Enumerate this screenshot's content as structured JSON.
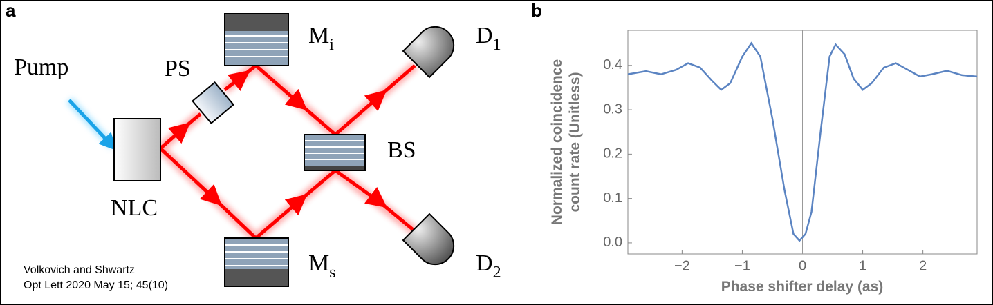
{
  "panel_labels": [
    "a",
    "b"
  ],
  "diagram": {
    "pump": "Pump",
    "ps": "PS",
    "nlc": "NLC",
    "mi": {
      "main": "M",
      "sub": "i"
    },
    "ms": {
      "main": "M",
      "sub": "s"
    },
    "bs": "BS",
    "d1": {
      "main": "D",
      "sub": "1"
    },
    "d2": {
      "main": "D",
      "sub": "2"
    },
    "citation": [
      "Volkovich and Shwartz",
      "Opt Lett 2020 May 15; 45(10)"
    ]
  },
  "chart_data": {
    "type": "line",
    "x_label": "Phase shifter delay (as)",
    "y_label": [
      "Normalized coincidence",
      "count rate (Unitless)"
    ],
    "xlim": [
      -2.9,
      2.9
    ],
    "ylim": [
      -0.025,
      0.479
    ],
    "xticks": [
      {
        "value": -2,
        "label": "−2"
      },
      {
        "value": -1,
        "label": "−1"
      },
      0,
      1,
      2
    ],
    "yticks": [
      {
        "value": 0,
        "label": "0.0"
      },
      0.1,
      0.2,
      0.3,
      0.4
    ],
    "x": [
      -2.9,
      -2.6,
      -2.35,
      -2.1,
      -1.9,
      -1.7,
      -1.5,
      -1.35,
      -1.2,
      -1.0,
      -0.85,
      -0.7,
      -0.5,
      -0.3,
      -0.15,
      -0.05,
      0.05,
      0.15,
      0.3,
      0.45,
      0.55,
      0.7,
      0.85,
      1.0,
      1.15,
      1.35,
      1.55,
      1.75,
      1.95,
      2.15,
      2.4,
      2.65,
      2.9
    ],
    "series": [
      {
        "color": "#5b84c2",
        "values": [
          0.38,
          0.387,
          0.38,
          0.39,
          0.405,
          0.395,
          0.365,
          0.345,
          0.36,
          0.42,
          0.45,
          0.42,
          0.28,
          0.12,
          0.02,
          0.005,
          0.02,
          0.07,
          0.25,
          0.42,
          0.447,
          0.425,
          0.37,
          0.345,
          0.36,
          0.395,
          0.405,
          0.39,
          0.375,
          0.38,
          0.388,
          0.378,
          0.375
        ]
      }
    ]
  }
}
